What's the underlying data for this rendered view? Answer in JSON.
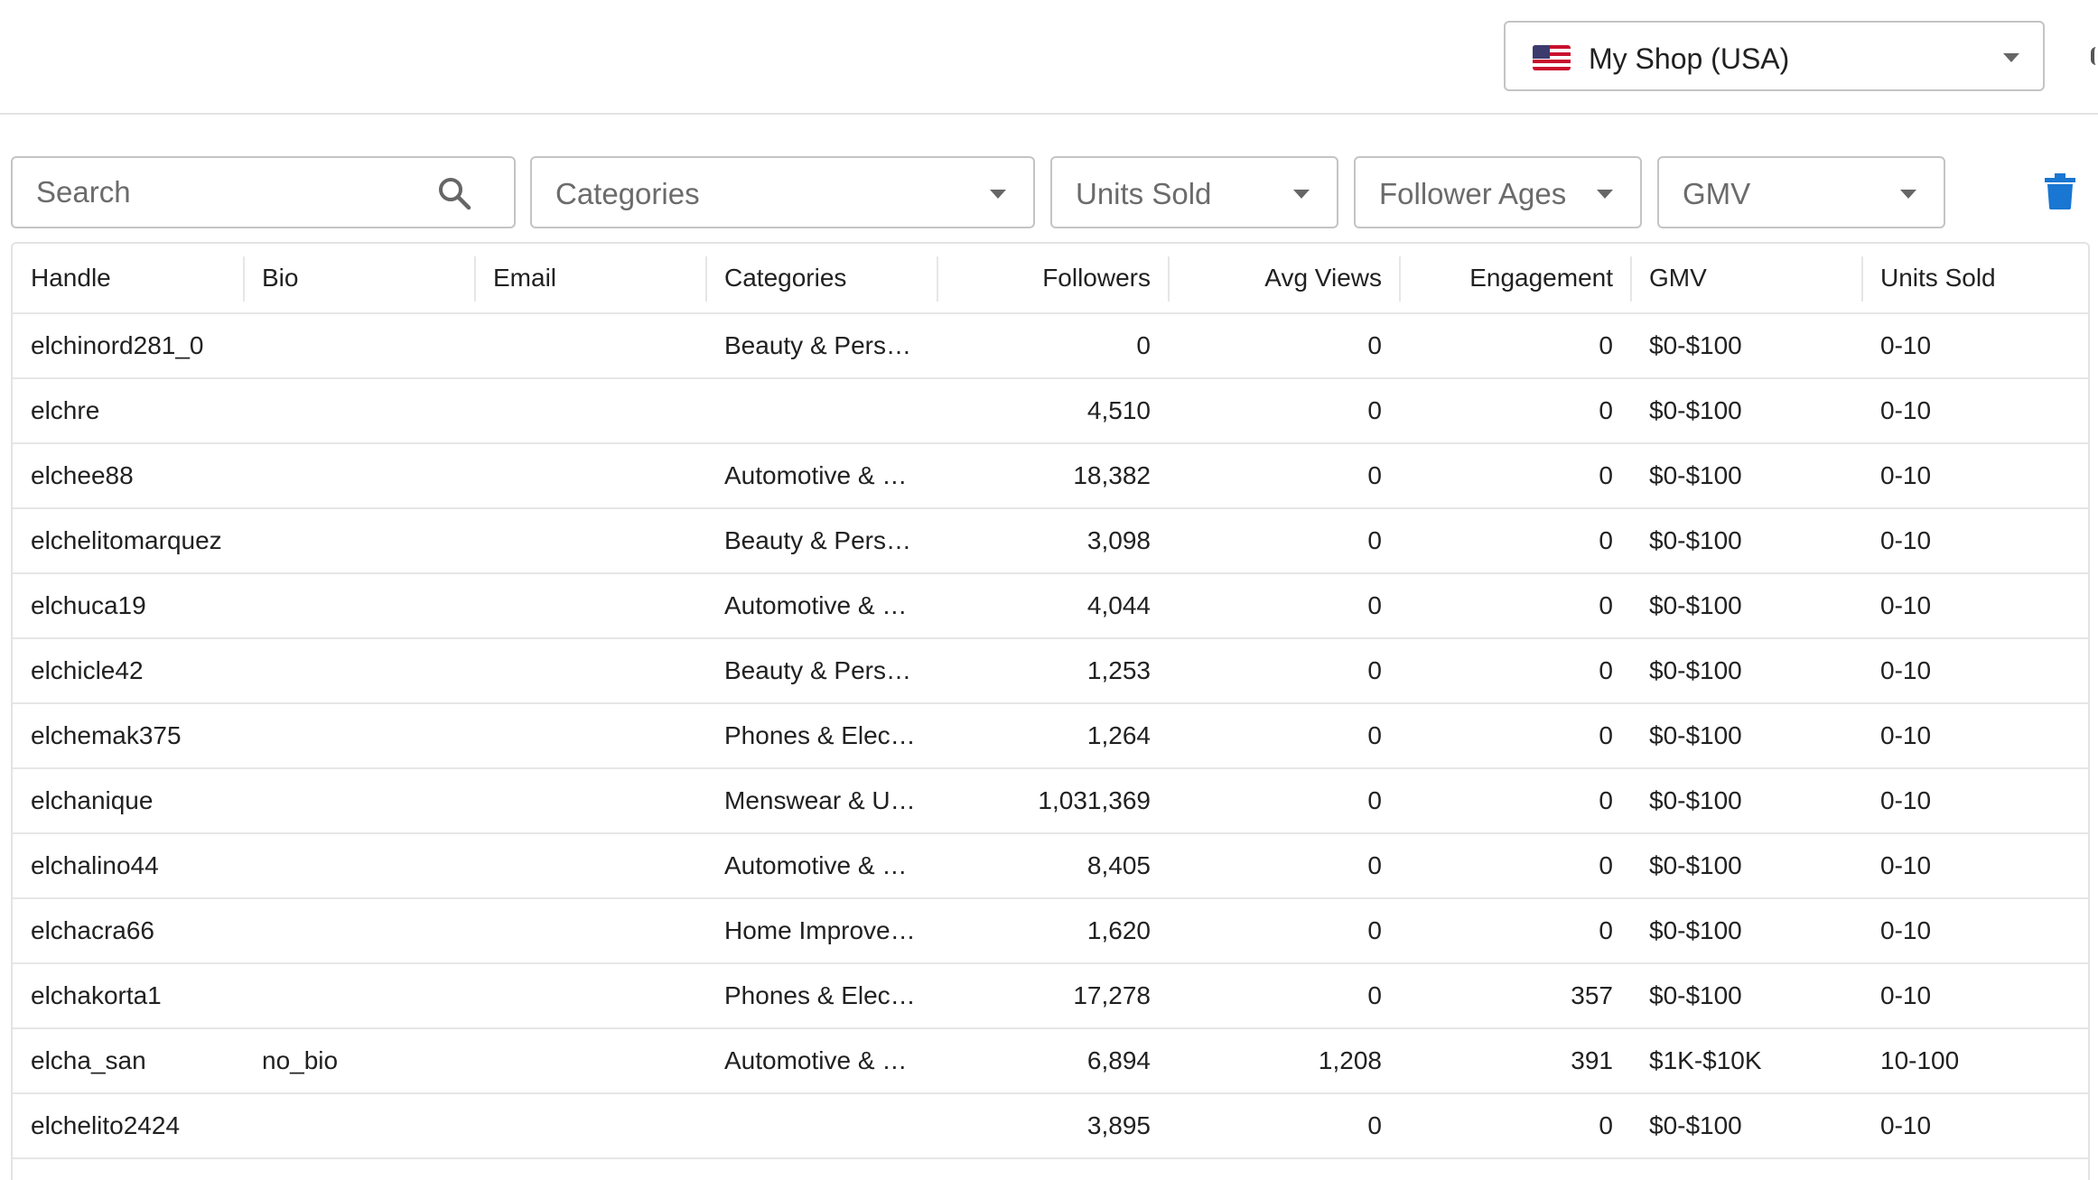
{
  "header": {
    "shop_selector": {
      "label": "My Shop (USA)",
      "flag_icon": "us-flag-icon"
    }
  },
  "filters": {
    "search_placeholder": "Search",
    "categories": "Categories",
    "units_sold": "Units Sold",
    "follower_ages": "Follower Ages",
    "gmv": "GMV",
    "accent_color": "#1976d2"
  },
  "table": {
    "columns": [
      "Handle",
      "Bio",
      "Email",
      "Categories",
      "Followers",
      "Avg Views",
      "Engagement",
      "GMV",
      "Units Sold"
    ],
    "rows": [
      {
        "handle": "elchinord281_0",
        "bio": "",
        "email": "",
        "categories": "Beauty & Personal Care",
        "followers": "0",
        "avg_views": "0",
        "engagement": "0",
        "gmv": "$0-$100",
        "units_sold": "0-10"
      },
      {
        "handle": "elchre",
        "bio": "",
        "email": "",
        "categories": "",
        "followers": "4,510",
        "avg_views": "0",
        "engagement": "0",
        "gmv": "$0-$100",
        "units_sold": "0-10"
      },
      {
        "handle": "elchee88",
        "bio": "",
        "email": "",
        "categories": "Automotive & Motorcycle",
        "followers": "18,382",
        "avg_views": "0",
        "engagement": "0",
        "gmv": "$0-$100",
        "units_sold": "0-10"
      },
      {
        "handle": "elchelitomarquez",
        "bio": "",
        "email": "",
        "categories": "Beauty & Personal Care",
        "followers": "3,098",
        "avg_views": "0",
        "engagement": "0",
        "gmv": "$0-$100",
        "units_sold": "0-10"
      },
      {
        "handle": "elchuca19",
        "bio": "",
        "email": "",
        "categories": "Automotive & Motorcycle",
        "followers": "4,044",
        "avg_views": "0",
        "engagement": "0",
        "gmv": "$0-$100",
        "units_sold": "0-10"
      },
      {
        "handle": "elchicle42",
        "bio": "",
        "email": "",
        "categories": "Beauty & Personal Care",
        "followers": "1,253",
        "avg_views": "0",
        "engagement": "0",
        "gmv": "$0-$100",
        "units_sold": "0-10"
      },
      {
        "handle": "elchemak375",
        "bio": "",
        "email": "",
        "categories": "Phones & Electronics",
        "followers": "1,264",
        "avg_views": "0",
        "engagement": "0",
        "gmv": "$0-$100",
        "units_sold": "0-10"
      },
      {
        "handle": "elchanique",
        "bio": "",
        "email": "",
        "categories": "Menswear & Underwear",
        "followers": "1,031,369",
        "avg_views": "0",
        "engagement": "0",
        "gmv": "$0-$100",
        "units_sold": "0-10"
      },
      {
        "handle": "elchalino44",
        "bio": "",
        "email": "",
        "categories": "Automotive & Motorcycle",
        "followers": "8,405",
        "avg_views": "0",
        "engagement": "0",
        "gmv": "$0-$100",
        "units_sold": "0-10"
      },
      {
        "handle": "elchacra66",
        "bio": "",
        "email": "",
        "categories": "Home Improvement",
        "followers": "1,620",
        "avg_views": "0",
        "engagement": "0",
        "gmv": "$0-$100",
        "units_sold": "0-10"
      },
      {
        "handle": "elchakorta1",
        "bio": "",
        "email": "",
        "categories": "Phones & Electronics",
        "followers": "17,278",
        "avg_views": "0",
        "engagement": "357",
        "gmv": "$0-$100",
        "units_sold": "0-10"
      },
      {
        "handle": "elcha_san",
        "bio": "no_bio",
        "email": "",
        "categories": "Automotive & Motorcycle",
        "followers": "6,894",
        "avg_views": "1,208",
        "engagement": "391",
        "gmv": "$1K-$10K",
        "units_sold": "10-100"
      },
      {
        "handle": "elchelito2424",
        "bio": "",
        "email": "",
        "categories": "",
        "followers": "3,895",
        "avg_views": "0",
        "engagement": "0",
        "gmv": "$0-$100",
        "units_sold": "0-10"
      }
    ]
  }
}
